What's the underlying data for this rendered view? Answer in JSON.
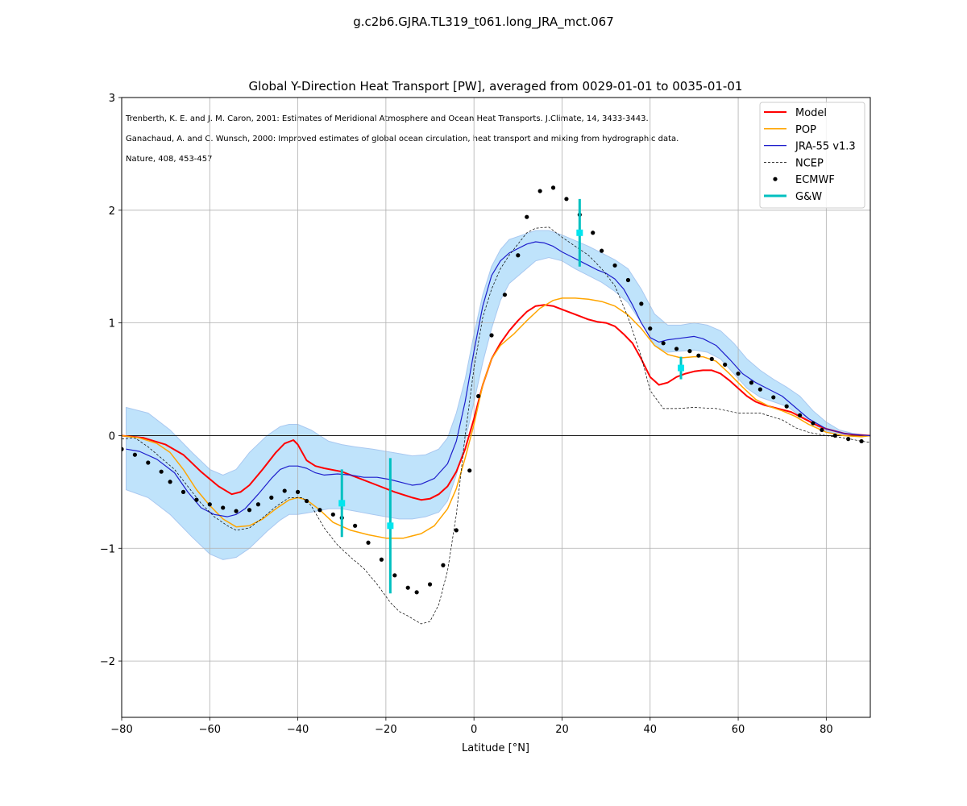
{
  "suptitle": "g.c2b6.GJRA.TL319_t061.long_JRA_mct.067",
  "chart_data": {
    "type": "line",
    "title": "Global Y-Direction Heat Transport [PW], averaged from 0029-01-01 to 0035-01-01",
    "xlabel": "Latitude [°N]",
    "ylabel": "",
    "xlim": [
      -80,
      90
    ],
    "ylim": [
      -2.5,
      3
    ],
    "xticks": [
      -80,
      -60,
      -40,
      -20,
      0,
      20,
      40,
      60,
      80
    ],
    "xtick_labels": [
      "−80",
      "−60",
      "−40",
      "−20",
      "0",
      "20",
      "40",
      "60",
      "80"
    ],
    "yticks": [
      -2,
      -1,
      0,
      1,
      2,
      3
    ],
    "ytick_labels": [
      "−2",
      "−1",
      "0",
      "1",
      "2",
      "3"
    ],
    "grid": true,
    "legend_position": "top-right",
    "annotations": [
      "Trenberth, K. E. and J. M. Caron, 2001: Estimates of Meridional Atmosphere and Ocean Heat Transports. J.Climate, 14, 3433-3443.",
      "Ganachaud, A. and C. Wunsch, 2000: Improved estimates of global ocean circulation, heat transport and mixing from hydrographic data.",
      "Nature, 408, 453-457"
    ],
    "band": {
      "color": "#bfe3fb",
      "edge_color": "#a9c8f0",
      "x": [
        -79,
        -74,
        -69,
        -64,
        -60,
        -57,
        -54,
        -51,
        -47,
        -44,
        -42,
        -40,
        -37,
        -33,
        -30,
        -27,
        -23,
        -20,
        -17,
        -14,
        -11,
        -8,
        -6,
        -4,
        -2,
        0,
        2,
        4,
        6,
        8,
        11,
        14,
        17,
        20,
        23,
        26,
        29,
        32,
        35,
        38,
        41,
        44,
        47,
        50,
        53,
        56,
        59,
        62,
        65,
        68,
        71,
        74,
        77,
        80,
        83,
        86,
        90
      ],
      "upper": [
        0.25,
        0.2,
        0.05,
        -0.15,
        -0.3,
        -0.35,
        -0.3,
        -0.15,
        0.0,
        0.08,
        0.1,
        0.1,
        0.05,
        -0.05,
        -0.08,
        -0.1,
        -0.12,
        -0.14,
        -0.16,
        -0.18,
        -0.17,
        -0.12,
        -0.02,
        0.2,
        0.5,
        0.9,
        1.25,
        1.5,
        1.65,
        1.74,
        1.78,
        1.82,
        1.82,
        1.78,
        1.73,
        1.68,
        1.62,
        1.56,
        1.48,
        1.3,
        1.08,
        0.98,
        0.98,
        1.0,
        0.98,
        0.93,
        0.82,
        0.68,
        0.58,
        0.5,
        0.43,
        0.35,
        0.22,
        0.12,
        0.05,
        0.02,
        0.0
      ],
      "lower": [
        -0.48,
        -0.55,
        -0.7,
        -0.9,
        -1.05,
        -1.1,
        -1.08,
        -1.0,
        -0.85,
        -0.75,
        -0.7,
        -0.7,
        -0.68,
        -0.65,
        -0.65,
        -0.67,
        -0.7,
        -0.72,
        -0.74,
        -0.74,
        -0.72,
        -0.68,
        -0.58,
        -0.35,
        -0.05,
        0.3,
        0.65,
        0.95,
        1.2,
        1.35,
        1.45,
        1.55,
        1.58,
        1.55,
        1.48,
        1.42,
        1.36,
        1.28,
        1.18,
        1.0,
        0.8,
        0.74,
        0.75,
        0.76,
        0.74,
        0.68,
        0.55,
        0.42,
        0.34,
        0.3,
        0.26,
        0.18,
        0.1,
        0.04,
        0.01,
        0.0,
        0.0
      ]
    },
    "series": [
      {
        "name": "Model",
        "color": "#ff0000",
        "width": 2,
        "dash": "",
        "x": [
          -80,
          -75,
          -70,
          -66,
          -62,
          -58,
          -55,
          -53,
          -51,
          -48,
          -45,
          -43,
          -41,
          -40,
          -38,
          -36,
          -34,
          -30,
          -26,
          -22,
          -18,
          -14,
          -12,
          -10,
          -8,
          -6,
          -4,
          -2,
          0,
          2,
          4,
          6,
          8,
          10,
          12,
          14,
          16,
          18,
          20,
          22,
          24,
          26,
          28,
          30,
          32,
          34,
          36,
          38,
          40,
          42,
          44,
          46,
          48,
          50,
          52,
          54,
          56,
          58,
          60,
          62,
          64,
          66,
          68,
          70,
          72,
          74,
          76,
          78,
          80,
          82,
          84,
          86,
          88,
          90
        ],
        "y": [
          0.0,
          -0.02,
          -0.08,
          -0.17,
          -0.32,
          -0.45,
          -0.52,
          -0.5,
          -0.44,
          -0.3,
          -0.15,
          -0.07,
          -0.04,
          -0.08,
          -0.22,
          -0.27,
          -0.29,
          -0.32,
          -0.38,
          -0.44,
          -0.5,
          -0.55,
          -0.57,
          -0.56,
          -0.52,
          -0.45,
          -0.32,
          -0.12,
          0.15,
          0.45,
          0.68,
          0.82,
          0.93,
          1.02,
          1.1,
          1.15,
          1.16,
          1.15,
          1.12,
          1.09,
          1.06,
          1.03,
          1.01,
          1.0,
          0.97,
          0.9,
          0.82,
          0.68,
          0.52,
          0.45,
          0.47,
          0.52,
          0.55,
          0.57,
          0.58,
          0.58,
          0.55,
          0.49,
          0.42,
          0.35,
          0.3,
          0.27,
          0.25,
          0.23,
          0.21,
          0.17,
          0.13,
          0.09,
          0.06,
          0.04,
          0.02,
          0.01,
          0.005,
          0.0
        ]
      },
      {
        "name": "POP",
        "color": "#ffa500",
        "width": 1.5,
        "dash": "",
        "x": [
          -80,
          -76,
          -72,
          -69,
          -66,
          -63,
          -60,
          -57,
          -54,
          -51,
          -48,
          -45,
          -42,
          -40,
          -38,
          -35,
          -32,
          -28,
          -24,
          -20,
          -16,
          -12,
          -9,
          -6,
          -4,
          -2,
          0,
          2,
          4,
          6,
          9,
          12,
          15,
          18,
          20,
          23,
          26,
          29,
          32,
          35,
          38,
          41,
          44,
          47,
          50,
          52,
          55,
          58,
          61,
          64,
          67,
          70,
          73,
          76,
          80,
          84,
          88,
          90
        ],
        "y": [
          0.0,
          -0.02,
          -0.07,
          -0.15,
          -0.3,
          -0.48,
          -0.62,
          -0.74,
          -0.81,
          -0.8,
          -0.74,
          -0.65,
          -0.57,
          -0.55,
          -0.57,
          -0.66,
          -0.77,
          -0.84,
          -0.88,
          -0.91,
          -0.91,
          -0.87,
          -0.8,
          -0.65,
          -0.47,
          -0.2,
          0.1,
          0.45,
          0.68,
          0.8,
          0.9,
          1.02,
          1.13,
          1.2,
          1.22,
          1.22,
          1.21,
          1.19,
          1.15,
          1.07,
          0.95,
          0.8,
          0.72,
          0.69,
          0.7,
          0.7,
          0.66,
          0.55,
          0.43,
          0.32,
          0.26,
          0.22,
          0.17,
          0.1,
          0.03,
          0.0,
          -0.01,
          0.0
        ]
      },
      {
        "name": "JRA-55 v1.3",
        "color": "#1f1fcc",
        "width": 1.2,
        "dash": "",
        "x": [
          -79,
          -76,
          -72,
          -68,
          -65,
          -62,
          -59,
          -56,
          -54,
          -52,
          -49,
          -46,
          -44,
          -42,
          -40,
          -38,
          -36,
          -34,
          -31,
          -28,
          -25,
          -22,
          -19,
          -16,
          -14,
          -12,
          -9,
          -6,
          -4,
          -2,
          0,
          2,
          4,
          6,
          8,
          10,
          12,
          14,
          16,
          18,
          20,
          22,
          24,
          26,
          28,
          30,
          32,
          34,
          36,
          38,
          40,
          42,
          44,
          46,
          48,
          50,
          52,
          55,
          58,
          61,
          64,
          67,
          70,
          73,
          76,
          80,
          84,
          88,
          90
        ],
        "y": [
          -0.12,
          -0.14,
          -0.21,
          -0.33,
          -0.5,
          -0.64,
          -0.7,
          -0.72,
          -0.7,
          -0.65,
          -0.52,
          -0.38,
          -0.3,
          -0.27,
          -0.27,
          -0.29,
          -0.33,
          -0.35,
          -0.34,
          -0.35,
          -0.37,
          -0.37,
          -0.39,
          -0.42,
          -0.44,
          -0.43,
          -0.38,
          -0.25,
          -0.05,
          0.3,
          0.75,
          1.15,
          1.42,
          1.55,
          1.62,
          1.66,
          1.7,
          1.72,
          1.71,
          1.68,
          1.63,
          1.59,
          1.55,
          1.51,
          1.47,
          1.44,
          1.39,
          1.3,
          1.16,
          1.0,
          0.87,
          0.83,
          0.85,
          0.86,
          0.87,
          0.88,
          0.86,
          0.8,
          0.68,
          0.55,
          0.47,
          0.41,
          0.35,
          0.25,
          0.15,
          0.06,
          0.02,
          0.005,
          0.0
        ]
      },
      {
        "name": "NCEP",
        "color": "#000000",
        "width": 0.7,
        "dash": "3,2",
        "x": [
          -80,
          -77,
          -74,
          -71,
          -68,
          -65,
          -62,
          -59,
          -56,
          -54,
          -51,
          -48,
          -45,
          -42,
          -39,
          -37,
          -34,
          -31,
          -28,
          -25,
          -22,
          -19,
          -17,
          -15,
          -12,
          -10,
          -8,
          -6,
          -4,
          -2,
          0,
          2,
          4,
          6,
          8,
          10,
          12,
          14,
          17,
          20,
          23,
          26,
          29,
          32,
          35,
          38,
          40,
          43,
          46,
          50,
          55,
          60,
          65,
          70,
          73,
          76,
          80,
          84,
          88,
          90
        ],
        "y": [
          -0.03,
          -0.02,
          -0.1,
          -0.2,
          -0.3,
          -0.45,
          -0.6,
          -0.72,
          -0.8,
          -0.84,
          -0.82,
          -0.73,
          -0.63,
          -0.55,
          -0.55,
          -0.62,
          -0.82,
          -0.97,
          -1.08,
          -1.18,
          -1.32,
          -1.48,
          -1.56,
          -1.6,
          -1.67,
          -1.65,
          -1.5,
          -1.2,
          -0.7,
          0.0,
          0.6,
          1.05,
          1.3,
          1.48,
          1.6,
          1.7,
          1.8,
          1.84,
          1.85,
          1.76,
          1.68,
          1.6,
          1.48,
          1.33,
          1.05,
          0.7,
          0.4,
          0.24,
          0.24,
          0.25,
          0.24,
          0.2,
          0.2,
          0.14,
          0.07,
          0.03,
          0.0,
          -0.02,
          -0.05,
          -0.06
        ]
      }
    ],
    "ecmwf": {
      "name": "ECMWF",
      "color": "#000000",
      "x": [
        -80,
        -77,
        -74,
        -71,
        -69,
        -66,
        -63,
        -60,
        -57,
        -54,
        -51,
        -49,
        -46,
        -43,
        -40,
        -38,
        -35,
        -32,
        -30,
        -27,
        -24,
        -21,
        -18,
        -15,
        -13,
        -10,
        -7,
        -4,
        -1,
        1,
        4,
        7,
        10,
        12,
        15,
        18,
        21,
        24,
        27,
        29,
        32,
        35,
        38,
        40,
        43,
        46,
        49,
        51,
        54,
        57,
        60,
        63,
        65,
        68,
        71,
        74,
        77,
        79,
        82,
        85,
        88
      ],
      "y": [
        -0.12,
        -0.17,
        -0.24,
        -0.32,
        -0.41,
        -0.5,
        -0.57,
        -0.61,
        -0.64,
        -0.67,
        -0.66,
        -0.61,
        -0.55,
        -0.49,
        -0.5,
        -0.58,
        -0.66,
        -0.7,
        -0.73,
        -0.8,
        -0.95,
        -1.1,
        -1.24,
        -1.35,
        -1.39,
        -1.32,
        -1.15,
        -0.84,
        -0.31,
        0.35,
        0.89,
        1.25,
        1.6,
        1.94,
        2.17,
        2.2,
        2.1,
        1.96,
        1.8,
        1.64,
        1.51,
        1.38,
        1.17,
        0.95,
        0.82,
        0.77,
        0.75,
        0.71,
        0.68,
        0.63,
        0.55,
        0.47,
        0.41,
        0.34,
        0.26,
        0.18,
        0.11,
        0.05,
        0.0,
        -0.03,
        -0.05
      ]
    },
    "gw": {
      "name": "G&W",
      "color": "#00c0c0",
      "marker_color": "#00e5ee",
      "points": [
        {
          "x": -30,
          "y": -0.6,
          "ylow": -0.9,
          "yhigh": -0.3
        },
        {
          "x": -19,
          "y": -0.8,
          "ylow": -1.4,
          "yhigh": -0.2
        },
        {
          "x": 24,
          "y": 1.8,
          "ylow": 1.5,
          "yhigh": 2.1
        },
        {
          "x": 47,
          "y": 0.6,
          "ylow": 0.5,
          "yhigh": 0.7
        }
      ]
    }
  }
}
